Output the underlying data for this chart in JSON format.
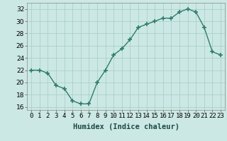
{
  "x": [
    0,
    1,
    2,
    3,
    4,
    5,
    6,
    7,
    8,
    9,
    10,
    11,
    12,
    13,
    14,
    15,
    16,
    17,
    18,
    19,
    20,
    21,
    22,
    23
  ],
  "y": [
    22,
    22,
    21.5,
    19.5,
    19,
    17,
    16.5,
    16.5,
    20,
    22,
    24.5,
    25.5,
    27,
    29,
    29.5,
    30,
    30.5,
    30.5,
    31.5,
    32,
    31.5,
    29,
    25,
    24.5
  ],
  "line_color": "#2e7d6e",
  "marker_color": "#2e7d6e",
  "bg_color": "#cce8e4",
  "grid_color": "#aacfcc",
  "xlabel": "Humidex (Indice chaleur)",
  "ylim": [
    15.5,
    33
  ],
  "xlim": [
    -0.5,
    23.5
  ],
  "yticks": [
    16,
    18,
    20,
    22,
    24,
    26,
    28,
    30,
    32
  ],
  "xtick_labels": [
    "0",
    "1",
    "2",
    "3",
    "4",
    "5",
    "6",
    "7",
    "8",
    "9",
    "10",
    "11",
    "12",
    "13",
    "14",
    "15",
    "16",
    "17",
    "18",
    "19",
    "20",
    "21",
    "22",
    "23"
  ],
  "xlabel_fontsize": 7.5,
  "tick_fontsize": 6.5
}
